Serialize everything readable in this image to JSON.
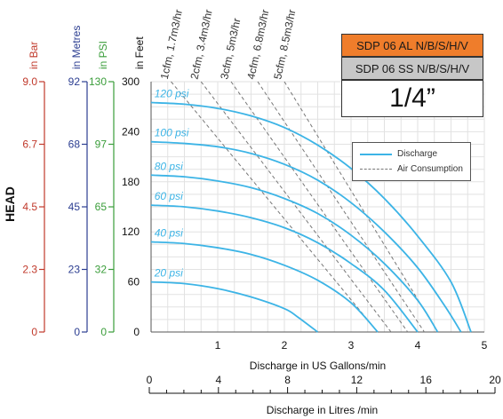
{
  "model_labels": {
    "al": "SDP 06 AL N/B/S/H/V",
    "ss": "SDP 06 SS N/B/S/H/V",
    "size": "1/4”"
  },
  "colors": {
    "bar": "#c0392b",
    "metres": "#2c3e91",
    "psi": "#3a9d3a",
    "discharge": "#3cb4e6",
    "air": "#777777",
    "al_box": "#ef7d2b",
    "ss_box": "#c7c7c7"
  },
  "chart_data": {
    "type": "line",
    "y_axis_title": "HEAD",
    "y_scales": [
      {
        "unit": "in Bar",
        "ticks": [
          "9.0",
          "6.7",
          "4.5",
          "2.3",
          "0"
        ]
      },
      {
        "unit": "in Metres",
        "ticks": [
          "92",
          "68",
          "45",
          "23",
          "0"
        ]
      },
      {
        "unit": "in PSI",
        "ticks": [
          "130",
          "97",
          "65",
          "32",
          "0"
        ]
      },
      {
        "unit": "in Feet",
        "ticks": [
          "300",
          "240",
          "180",
          "120",
          "60",
          "0"
        ]
      }
    ],
    "ylim_feet": [
      0,
      300
    ],
    "xlabel": "Discharge in US Gallons/min",
    "xlim": [
      0,
      5
    ],
    "x_ticks": [
      "1",
      "2",
      "3",
      "4",
      "5"
    ],
    "x2label": "Discharge in Litres /min",
    "x2lim": [
      0,
      20
    ],
    "x2_ticks": [
      "0",
      "4",
      "8",
      "12",
      "16",
      "20"
    ],
    "grid": true,
    "legend": {
      "position": "top-right",
      "entries": [
        {
          "label": "Discharge",
          "style": "solid"
        },
        {
          "label": "Air Consumption",
          "style": "dashed"
        }
      ]
    },
    "discharge_series": [
      {
        "name": "120 psi",
        "x": [
          0,
          0.5,
          1,
          1.5,
          2,
          2.5,
          3,
          3.5,
          4,
          4.5,
          4.8
        ],
        "y": [
          275,
          273,
          268,
          259,
          245,
          224,
          196,
          160,
          115,
          60,
          0
        ]
      },
      {
        "name": "100 psi",
        "x": [
          0,
          0.5,
          1,
          1.5,
          2,
          2.5,
          3,
          3.5,
          4,
          4.4,
          4.65
        ],
        "y": [
          228,
          226,
          222,
          214,
          201,
          182,
          155,
          120,
          77,
          32,
          0
        ]
      },
      {
        "name": "80 psi",
        "x": [
          0,
          0.5,
          1,
          1.5,
          2,
          2.5,
          3,
          3.5,
          4,
          4.3
        ],
        "y": [
          188,
          186,
          181,
          173,
          160,
          142,
          116,
          82,
          38,
          0
        ]
      },
      {
        "name": "60 psi",
        "x": [
          0,
          0.5,
          1,
          1.5,
          2,
          2.5,
          3,
          3.5,
          4
        ],
        "y": [
          152,
          150,
          145,
          137,
          125,
          107,
          82,
          50,
          0
        ]
      },
      {
        "name": "40 psi",
        "x": [
          0,
          0.5,
          1,
          1.5,
          2,
          2.5,
          3,
          3.4
        ],
        "y": [
          108,
          106,
          101,
          93,
          80,
          62,
          35,
          0
        ]
      },
      {
        "name": "20 psi",
        "x": [
          0,
          0.5,
          1,
          1.5,
          2,
          2.2,
          2.5
        ],
        "y": [
          60,
          58,
          52,
          42,
          28,
          18,
          0
        ]
      }
    ],
    "air_series": [
      {
        "name": "1cfm, 1.7m3/hr",
        "x": [
          0.3,
          3.4
        ],
        "y": [
          300,
          0
        ]
      },
      {
        "name": "2cfm, 3.4m3/hr",
        "x": [
          0.75,
          3.6
        ],
        "y": [
          300,
          0
        ]
      },
      {
        "name": "3cfm, 5m3/hr",
        "x": [
          1.2,
          3.85
        ],
        "y": [
          300,
          0
        ]
      },
      {
        "name": "4cfm, 6.8m3/hr",
        "x": [
          1.6,
          4.1
        ],
        "y": [
          300,
          0
        ]
      },
      {
        "name": "5cfm, 8.5m3/hr",
        "x": [
          2.0,
          4.3
        ],
        "y": [
          300,
          0
        ]
      }
    ]
  }
}
